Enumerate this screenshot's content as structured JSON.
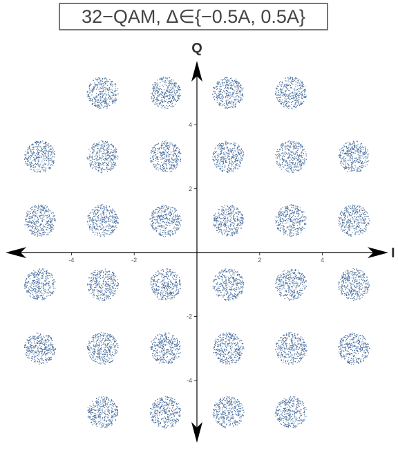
{
  "chart_data": {
    "type": "scatter",
    "title": "32−QAM, Δ∈{−0.5A, 0.5A}",
    "xlabel": "I",
    "ylabel": "Q",
    "xlim": [
      -6.1,
      6.1
    ],
    "ylim": [
      -5.95,
      6.0
    ],
    "x_ticks": [
      -4,
      -2,
      2,
      4
    ],
    "y_ticks": [
      -4,
      -2,
      2,
      4
    ],
    "x_tick_labels": [
      "-4",
      "-2",
      "2",
      "4"
    ],
    "y_tick_labels": [
      "-4",
      "-2",
      "2",
      "4"
    ],
    "grid": false,
    "point_color": "#4a6f9e",
    "cluster_radius": 0.5,
    "points_per_cluster": 350,
    "constellation": [
      [
        -3,
        5
      ],
      [
        -1,
        5
      ],
      [
        1,
        5
      ],
      [
        3,
        5
      ],
      [
        -5,
        3
      ],
      [
        -3,
        3
      ],
      [
        -1,
        3
      ],
      [
        1,
        3
      ],
      [
        3,
        3
      ],
      [
        5,
        3
      ],
      [
        -5,
        1
      ],
      [
        -3,
        1
      ],
      [
        -1,
        1
      ],
      [
        1,
        1
      ],
      [
        3,
        1
      ],
      [
        5,
        1
      ],
      [
        -5,
        -1
      ],
      [
        -3,
        -1
      ],
      [
        -1,
        -1
      ],
      [
        1,
        -1
      ],
      [
        3,
        -1
      ],
      [
        5,
        -1
      ],
      [
        -5,
        -3
      ],
      [
        -3,
        -3
      ],
      [
        -1,
        -3
      ],
      [
        1,
        -3
      ],
      [
        3,
        -3
      ],
      [
        5,
        -3
      ],
      [
        -3,
        -5
      ],
      [
        -1,
        -5
      ],
      [
        1,
        -5
      ],
      [
        3,
        -5
      ]
    ]
  }
}
